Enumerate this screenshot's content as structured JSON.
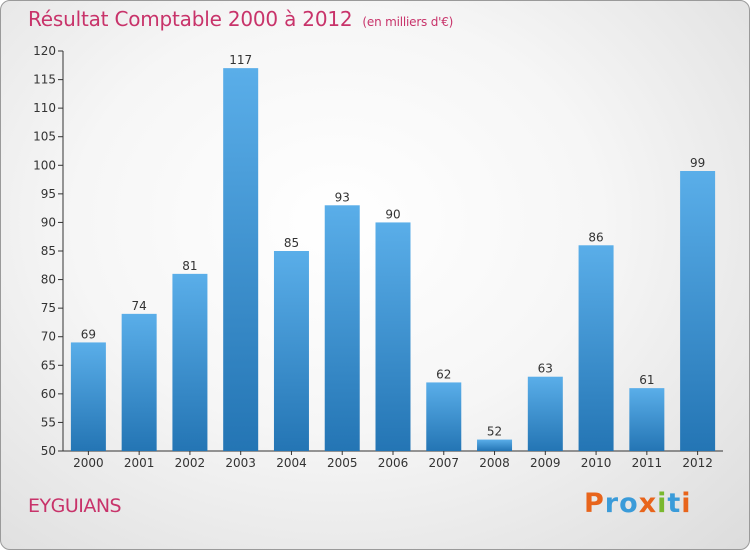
{
  "header": {
    "title": "Résultat Comptable 2000 à 2012",
    "subtitle": "(en milliers d'€)"
  },
  "footer": {
    "commune": "EYGUIANS",
    "logo": "Proxiti"
  },
  "colors": {
    "title": "#c8336a",
    "bar_top": "#5aaee9",
    "bar_bottom": "#2475b4",
    "logo_letters": [
      "#e8641b",
      "#3a9bd9",
      "#3a9bd9",
      "#e8641b",
      "#7ab82f",
      "#3a9bd9",
      "#e8641b"
    ]
  },
  "chart_data": {
    "type": "bar",
    "title": "Résultat Comptable 2000 à 2012",
    "subtitle": "(en milliers d'€)",
    "categories": [
      "2000",
      "2001",
      "2002",
      "2003",
      "2004",
      "2005",
      "2006",
      "2007",
      "2008",
      "2009",
      "2010",
      "2011",
      "2012"
    ],
    "values": [
      69,
      74,
      81,
      117,
      85,
      93,
      90,
      62,
      52,
      63,
      86,
      61,
      99
    ],
    "ylim": [
      50,
      120
    ],
    "yticks": [
      50,
      55,
      60,
      65,
      70,
      75,
      80,
      85,
      90,
      95,
      100,
      105,
      110,
      115,
      120
    ],
    "grid": false,
    "data_labels": true
  }
}
